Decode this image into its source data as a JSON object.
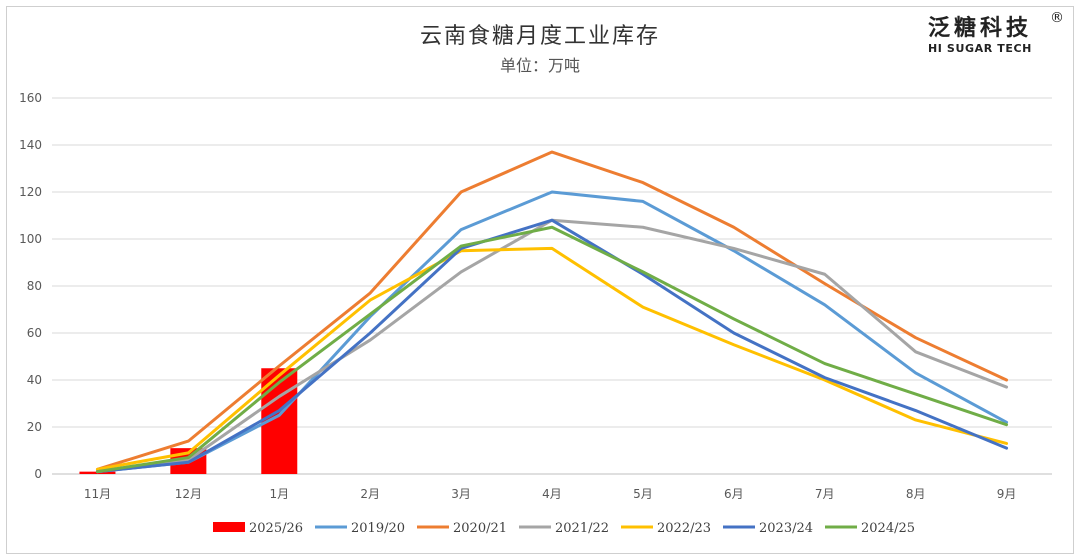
{
  "header": {
    "title": "云南食糖月度工业库存",
    "unit": "单位：万吨"
  },
  "logo": {
    "cn": "泛糖科技",
    "en": "HI SUGAR TECH",
    "reg": "®"
  },
  "chart_data": {
    "type": "line",
    "title": "云南食糖月度工业库存",
    "subtitle": "单位：万吨",
    "categories": [
      "11月",
      "12月",
      "1月",
      "2月",
      "3月",
      "4月",
      "5月",
      "6月",
      "7月",
      "8月",
      "9月"
    ],
    "ylim": [
      0,
      160
    ],
    "yticks": [
      0,
      20,
      40,
      60,
      80,
      100,
      120,
      140,
      160
    ],
    "grid": true,
    "legend_position": "bottom",
    "bar_series": {
      "name": "2025/26",
      "color": "#ff0000",
      "values": [
        1,
        11,
        45,
        null,
        null,
        null,
        null,
        null,
        null,
        null,
        null
      ]
    },
    "series": [
      {
        "name": "2019/20",
        "color": "#5b9bd5",
        "values": [
          1,
          5,
          25,
          67,
          104,
          120,
          116,
          95,
          72,
          43,
          22
        ]
      },
      {
        "name": "2020/21",
        "color": "#ed7d31",
        "values": [
          2,
          14,
          46,
          77,
          120,
          137,
          124,
          105,
          81,
          58,
          40
        ]
      },
      {
        "name": "2021/22",
        "color": "#a5a5a5",
        "values": [
          1,
          6,
          33,
          57,
          86,
          108,
          105,
          96,
          85,
          52,
          37
        ]
      },
      {
        "name": "2022/23",
        "color": "#ffc000",
        "values": [
          2,
          9,
          42,
          74,
          95,
          96,
          71,
          55,
          40,
          23,
          13
        ]
      },
      {
        "name": "2023/24",
        "color": "#4472c4",
        "values": [
          1,
          5,
          27,
          60,
          96,
          108,
          85,
          60,
          41,
          27,
          11
        ]
      },
      {
        "name": "2024/25",
        "color": "#70ad47",
        "values": [
          1,
          7,
          39,
          68,
          97,
          105,
          86,
          66,
          47,
          34,
          21
        ]
      }
    ]
  }
}
